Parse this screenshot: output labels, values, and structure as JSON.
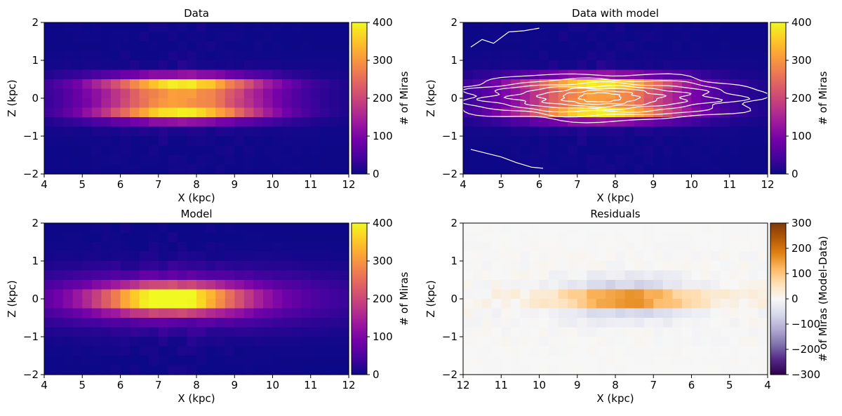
{
  "figure": {
    "panels": [
      {
        "id": "data",
        "title": "Data"
      },
      {
        "id": "data_with_model",
        "title": "Data with model"
      },
      {
        "id": "model",
        "title": "Model"
      },
      {
        "id": "residuals",
        "title": "Residuals"
      }
    ]
  },
  "colors": {
    "plasma": [
      "#0d0887",
      "#46039f",
      "#7201a8",
      "#9c179e",
      "#bd3786",
      "#d8576b",
      "#ed7953",
      "#fb9f3a",
      "#fdca26",
      "#f0f921"
    ],
    "puor": [
      "#2d004b",
      "#542788",
      "#8073ac",
      "#b2abd2",
      "#d8daeb",
      "#f7f7f7",
      "#fee0b6",
      "#fdb863",
      "#e08214",
      "#b35806",
      "#7f3b08"
    ],
    "contour": "#ffffff"
  },
  "chart_data": [
    {
      "type": "heatmap",
      "title": "Data",
      "xlabel": "X (kpc)",
      "ylabel": "Z (kpc)",
      "xlim": [
        4,
        12
      ],
      "ylim": [
        -2,
        2
      ],
      "xticks": [
        4,
        5,
        6,
        7,
        8,
        9,
        10,
        11,
        12
      ],
      "yticks": [
        -2,
        -1,
        0,
        1,
        2
      ],
      "colorbar": {
        "label": "# of Miras",
        "range": [
          0,
          400
        ],
        "ticks": [
          0,
          100,
          200,
          300,
          400
        ],
        "colormap": "plasma"
      },
      "grid": {
        "x_bins": 32,
        "y_bins": 16,
        "bin_width_kpc": 0.25
      },
      "structure": "density peaks near X≈7.5 kpc in two ridges at Z≈+0.35 and Z≈-0.35 kpc (~400 Miras per bin); counts fall toward 0 above |Z|≈1 kpc"
    },
    {
      "type": "heatmap",
      "title": "Data with model",
      "xlabel": "X (kpc)",
      "ylabel": "Z (kpc)",
      "xlim": [
        4,
        12
      ],
      "ylim": [
        -2,
        2
      ],
      "xticks": [
        4,
        5,
        6,
        7,
        8,
        9,
        10,
        11,
        12
      ],
      "yticks": [
        -2,
        -1,
        0,
        1,
        2
      ],
      "colorbar": {
        "label": "# of Miras",
        "range": [
          0,
          400
        ],
        "ticks": [
          0,
          100,
          200,
          300,
          400
        ],
        "colormap": "plasma"
      },
      "overlay": "white model contours centred near X≈7.5 kpc, Z≈0 kpc"
    },
    {
      "type": "heatmap",
      "title": "Model",
      "xlabel": "X (kpc)",
      "ylabel": "Z (kpc)",
      "xlim": [
        4,
        12
      ],
      "ylim": [
        -2,
        2
      ],
      "xticks": [
        4,
        5,
        6,
        7,
        8,
        9,
        10,
        11,
        12
      ],
      "yticks": [
        -2,
        -1,
        0,
        1,
        2
      ],
      "colorbar": {
        "label": "# of Miras",
        "range": [
          0,
          400
        ],
        "ticks": [
          0,
          100,
          200,
          300,
          400
        ],
        "colormap": "plasma"
      },
      "structure": "single band centred at Z≈0 with peak ~400 Miras near X≈7.3 kpc"
    },
    {
      "type": "heatmap",
      "title": "Residuals",
      "xlabel": "X (kpc)",
      "ylabel": "Z (kpc)",
      "xlim": [
        12,
        4
      ],
      "ylim": [
        -2,
        2
      ],
      "xticks": [
        12,
        11,
        10,
        9,
        8,
        7,
        6,
        5,
        4
      ],
      "yticks": [
        -2,
        -1,
        0,
        1,
        2
      ],
      "colorbar": {
        "label": "# of Miras (Model-Data)",
        "range": [
          -300,
          300
        ],
        "ticks": [
          300,
          200,
          100,
          0,
          -100,
          -200,
          -300
        ],
        "colormap": "PuOr_r"
      },
      "structure": "positive residuals (up to ~250) along Z≈0 between X≈7 and 8.5 kpc; weak negative residuals at |Z|≈0.4 kpc"
    }
  ]
}
